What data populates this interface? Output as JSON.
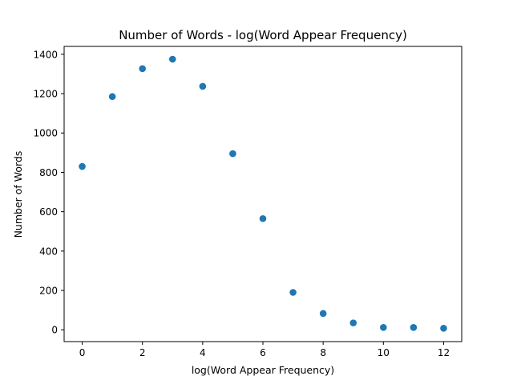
{
  "chart_data": {
    "type": "scatter",
    "title": "Number of Words - log(Word Appear Frequency)",
    "xlabel": "log(Word Appear Frequency)",
    "ylabel": "Number of Words",
    "xlim": [
      -0.6,
      12.6
    ],
    "ylim": [
      -60,
      1440
    ],
    "xticks": [
      0,
      2,
      4,
      6,
      8,
      10,
      12
    ],
    "yticks": [
      0,
      200,
      400,
      600,
      800,
      1000,
      1200,
      1400
    ],
    "grid": false,
    "marker_color": "#1f77b4",
    "series": [
      {
        "x": [
          0,
          1,
          2,
          3,
          4,
          5,
          6,
          7,
          8,
          9,
          10,
          11,
          12
        ],
        "y": [
          830,
          1185,
          1327,
          1375,
          1237,
          895,
          565,
          190,
          83,
          35,
          12,
          12,
          8
        ]
      }
    ]
  }
}
